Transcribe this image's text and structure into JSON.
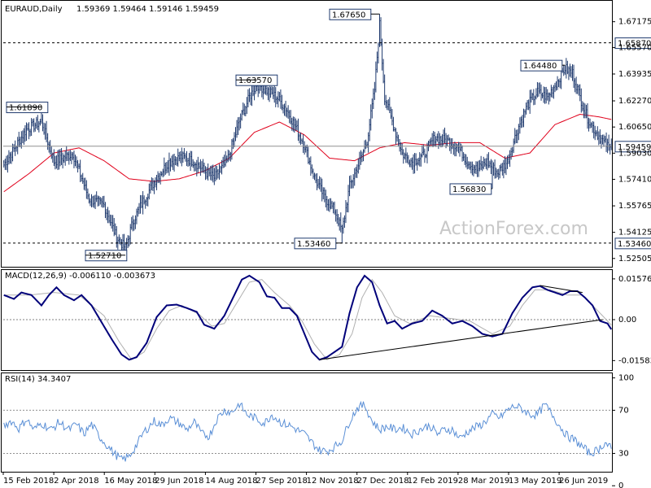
{
  "colors": {
    "background": "#ffffff",
    "candle": "#1f3a6e",
    "ma": "#e0001b",
    "macd_line": "#00007a",
    "macd_signal": "#b0b0b0",
    "rsi": "#5a8fd6",
    "level_box_border": "#1f3a6e",
    "axis": "#000000"
  },
  "watermark": "ActionForex.com",
  "chart_data": [
    {
      "type": "candlestick",
      "title": "EURAUD,Daily",
      "ohlc_header": "1.59369 1.59464 1.59146 1.59459",
      "ylim": [
        1.5199,
        1.6852
      ],
      "y_ticks": [
        "1.67175",
        "1.65570",
        "1.63935",
        "1.62270",
        "1.60650",
        "1.59030",
        "1.57410",
        "1.55765",
        "1.54125",
        "1.52505"
      ],
      "x_ticks": [
        "15 Feb 2018",
        "2 Apr 2018",
        "16 May 2018",
        "29 Jun 2018",
        "14 Aug 2018",
        "27 Sep 2018",
        "12 Nov 2018",
        "27 Dec 2018",
        "12 Feb 2019",
        "28 Mar 2019",
        "13 May 2019",
        "26 Jun 2019"
      ],
      "current_price": "1.59459",
      "dashed_levels": [
        "1.65870",
        "1.53460"
      ],
      "annotations": [
        "1.61890",
        "1.52710",
        "1.63570",
        "1.53460",
        "1.67650",
        "1.56830",
        "1.64480"
      ],
      "anchors": [
        [
          0,
          1.583
        ],
        [
          18,
          1.605
        ],
        [
          30,
          1.61
        ],
        [
          40,
          1.585
        ],
        [
          55,
          1.59
        ],
        [
          68,
          1.562
        ],
        [
          80,
          1.558
        ],
        [
          90,
          1.538
        ],
        [
          97,
          1.5315
        ],
        [
          103,
          1.548
        ],
        [
          112,
          1.562
        ],
        [
          122,
          1.575
        ],
        [
          132,
          1.585
        ],
        [
          142,
          1.588
        ],
        [
          152,
          1.585
        ],
        [
          162,
          1.578
        ],
        [
          168,
          1.575
        ],
        [
          178,
          1.585
        ],
        [
          188,
          1.61
        ],
        [
          196,
          1.625
        ],
        [
          202,
          1.633
        ],
        [
          210,
          1.629
        ],
        [
          218,
          1.625
        ],
        [
          226,
          1.617
        ],
        [
          234,
          1.605
        ],
        [
          240,
          1.595
        ],
        [
          248,
          1.575
        ],
        [
          256,
          1.563
        ],
        [
          264,
          1.555
        ],
        [
          270,
          1.542
        ],
        [
          276,
          1.57
        ],
        [
          284,
          1.585
        ],
        [
          290,
          1.598
        ],
        [
          296,
          1.63
        ],
        [
          300,
          1.67
        ],
        [
          304,
          1.625
        ],
        [
          310,
          1.61
        ],
        [
          318,
          1.59
        ],
        [
          326,
          1.585
        ],
        [
          334,
          1.588
        ],
        [
          344,
          1.6
        ],
        [
          354,
          1.598
        ],
        [
          362,
          1.595
        ],
        [
          370,
          1.585
        ],
        [
          378,
          1.58
        ],
        [
          386,
          1.585
        ],
        [
          394,
          1.578
        ],
        [
          402,
          1.585
        ],
        [
          410,
          1.605
        ],
        [
          418,
          1.62
        ],
        [
          426,
          1.628
        ],
        [
          434,
          1.625
        ],
        [
          442,
          1.635
        ],
        [
          448,
          1.643
        ],
        [
          454,
          1.64
        ],
        [
          460,
          1.625
        ],
        [
          466,
          1.612
        ],
        [
          472,
          1.604
        ],
        [
          478,
          1.598
        ],
        [
          485,
          1.592
        ]
      ],
      "ma_anchors": [
        [
          0,
          1.5664
        ],
        [
          20,
          1.5776
        ],
        [
          40,
          1.5904
        ],
        [
          60,
          1.5936
        ],
        [
          80,
          1.5856
        ],
        [
          100,
          1.5744
        ],
        [
          120,
          1.5728
        ],
        [
          140,
          1.5744
        ],
        [
          160,
          1.5792
        ],
        [
          180,
          1.5872
        ],
        [
          200,
          1.6032
        ],
        [
          220,
          1.6096
        ],
        [
          240,
          1.6016
        ],
        [
          260,
          1.5872
        ],
        [
          280,
          1.5856
        ],
        [
          300,
          1.5936
        ],
        [
          320,
          1.5968
        ],
        [
          340,
          1.5952
        ],
        [
          360,
          1.5968
        ],
        [
          380,
          1.5968
        ],
        [
          400,
          1.5872
        ],
        [
          420,
          1.5904
        ],
        [
          440,
          1.608
        ],
        [
          460,
          1.6144
        ],
        [
          475,
          1.6128
        ],
        [
          485,
          1.6112
        ]
      ]
    },
    {
      "type": "line",
      "title": "MACD(12,26,9) -0.006110 -0.003673",
      "ylim": [
        -0.0195,
        0.0195
      ],
      "y_ticks": [
        "0.015762",
        "0.00",
        "-0.015834"
      ],
      "series": [
        {
          "anchors": [
            [
              0,
              0.0095
            ],
            [
              8,
              0.008
            ],
            [
              14,
              0.0105
            ],
            [
              22,
              0.0095
            ],
            [
              30,
              0.0055
            ],
            [
              36,
              0.0095
            ],
            [
              42,
              0.0125
            ],
            [
              48,
              0.0095
            ],
            [
              56,
              0.0075
            ],
            [
              62,
              0.0095
            ],
            [
              70,
              0.0055
            ],
            [
              78,
              -0.001
            ],
            [
              86,
              -0.0075
            ],
            [
              94,
              -0.0135
            ],
            [
              100,
              -0.0155
            ],
            [
              106,
              -0.0145
            ],
            [
              114,
              -0.009
            ],
            [
              122,
              0.001
            ],
            [
              130,
              0.0055
            ],
            [
              138,
              0.0058
            ],
            [
              146,
              0.0045
            ],
            [
              154,
              0.003
            ],
            [
              160,
              -0.002
            ],
            [
              168,
              -0.0035
            ],
            [
              176,
              0.0015
            ],
            [
              184,
              0.0095
            ],
            [
              190,
              0.0155
            ],
            [
              196,
              0.017
            ],
            [
              204,
              0.0145
            ],
            [
              210,
              0.009
            ],
            [
              216,
              0.0085
            ],
            [
              222,
              0.0045
            ],
            [
              228,
              0.0045
            ],
            [
              234,
              0.0015
            ],
            [
              240,
              -0.0055
            ],
            [
              246,
              -0.0125
            ],
            [
              252,
              -0.0155
            ],
            [
              258,
              -0.0145
            ],
            [
              264,
              -0.0125
            ],
            [
              270,
              -0.0105
            ],
            [
              276,
              0.0025
            ],
            [
              282,
              0.0125
            ],
            [
              288,
              0.017
            ],
            [
              294,
              0.0145
            ],
            [
              300,
              0.0055
            ],
            [
              306,
              -0.0015
            ],
            [
              312,
              -0.0005
            ],
            [
              318,
              -0.0035
            ],
            [
              326,
              -0.0015
            ],
            [
              334,
              -0.0005
            ],
            [
              342,
              0.0035
            ],
            [
              350,
              0.0015
            ],
            [
              358,
              -0.0015
            ],
            [
              366,
              -0.0005
            ],
            [
              374,
              -0.0025
            ],
            [
              382,
              -0.0055
            ],
            [
              390,
              -0.0065
            ],
            [
              398,
              -0.0055
            ],
            [
              406,
              0.0025
            ],
            [
              414,
              0.0085
            ],
            [
              422,
              0.0125
            ],
            [
              428,
              0.013
            ],
            [
              434,
              0.0115
            ],
            [
              440,
              0.0105
            ],
            [
              446,
              0.0095
            ],
            [
              452,
              0.011
            ],
            [
              458,
              0.011
            ],
            [
              464,
              0.0085
            ],
            [
              470,
              0.0055
            ],
            [
              476,
              -0.0005
            ],
            [
              482,
              -0.0015
            ],
            [
              488,
              -0.006
            ]
          ]
        },
        {
          "anchors": [
            [
              0,
              0.0095
            ],
            [
              20,
              0.0095
            ],
            [
              40,
              0.0105
            ],
            [
              60,
              0.0095
            ],
            [
              80,
              0.0015
            ],
            [
              92,
              -0.0085
            ],
            [
              102,
              -0.0155
            ],
            [
              112,
              -0.0125
            ],
            [
              122,
              -0.0035
            ],
            [
              132,
              0.0035
            ],
            [
              142,
              0.0055
            ],
            [
              156,
              0.002
            ],
            [
              166,
              -0.0025
            ],
            [
              176,
              -0.0015
            ],
            [
              186,
              0.0065
            ],
            [
              196,
              0.0145
            ],
            [
              206,
              0.0155
            ],
            [
              216,
              0.0105
            ],
            [
              228,
              0.0055
            ],
            [
              238,
              -0.0005
            ],
            [
              248,
              -0.0095
            ],
            [
              258,
              -0.0155
            ],
            [
              268,
              -0.0135
            ],
            [
              278,
              -0.0055
            ],
            [
              286,
              0.0085
            ],
            [
              294,
              0.0155
            ],
            [
              302,
              0.0105
            ],
            [
              312,
              0.0015
            ],
            [
              324,
              -0.0015
            ],
            [
              340,
              0.0015
            ],
            [
              356,
              0.0005
            ],
            [
              372,
              -0.0005
            ],
            [
              390,
              -0.0055
            ],
            [
              404,
              -0.0025
            ],
            [
              414,
              0.0055
            ],
            [
              424,
              0.0115
            ],
            [
              436,
              0.0115
            ],
            [
              450,
              0.0095
            ],
            [
              462,
              0.0095
            ],
            [
              472,
              0.0045
            ],
            [
              480,
              0.0005
            ],
            [
              488,
              -0.0037
            ]
          ]
        }
      ]
    },
    {
      "type": "line",
      "title": "RSI(14) 34.3407",
      "ylim": [
        13,
        105
      ],
      "y_ticks": [
        "100",
        "70",
        "30",
        "0"
      ],
      "dashed_levels": [
        70,
        30
      ],
      "anchors": [
        [
          0,
          56
        ],
        [
          6,
          60
        ],
        [
          12,
          53
        ],
        [
          18,
          62
        ],
        [
          24,
          52
        ],
        [
          30,
          58
        ],
        [
          38,
          52
        ],
        [
          44,
          59
        ],
        [
          52,
          52
        ],
        [
          58,
          57
        ],
        [
          64,
          48
        ],
        [
          70,
          57
        ],
        [
          76,
          46
        ],
        [
          82,
          38
        ],
        [
          88,
          30
        ],
        [
          94,
          24
        ],
        [
          100,
          27
        ],
        [
          106,
          38
        ],
        [
          112,
          50
        ],
        [
          120,
          60
        ],
        [
          126,
          56
        ],
        [
          132,
          63
        ],
        [
          140,
          58
        ],
        [
          146,
          52
        ],
        [
          152,
          59
        ],
        [
          158,
          48
        ],
        [
          164,
          46
        ],
        [
          170,
          62
        ],
        [
          176,
          70
        ],
        [
          182,
          68
        ],
        [
          188,
          76
        ],
        [
          194,
          66
        ],
        [
          200,
          63
        ],
        [
          208,
          58
        ],
        [
          214,
          66
        ],
        [
          222,
          58
        ],
        [
          228,
          56
        ],
        [
          234,
          52
        ],
        [
          240,
          48
        ],
        [
          246,
          40
        ],
        [
          252,
          33
        ],
        [
          258,
          32
        ],
        [
          264,
          36
        ],
        [
          270,
          42
        ],
        [
          276,
          60
        ],
        [
          282,
          72
        ],
        [
          288,
          75
        ],
        [
          294,
          60
        ],
        [
          300,
          52
        ],
        [
          306,
          55
        ],
        [
          312,
          52
        ],
        [
          318,
          54
        ],
        [
          326,
          48
        ],
        [
          332,
          52
        ],
        [
          340,
          56
        ],
        [
          346,
          48
        ],
        [
          352,
          52
        ],
        [
          358,
          52
        ],
        [
          364,
          44
        ],
        [
          370,
          50
        ],
        [
          376,
          54
        ],
        [
          382,
          57
        ],
        [
          390,
          66
        ],
        [
          396,
          63
        ],
        [
          402,
          70
        ],
        [
          408,
          74
        ],
        [
          414,
          71
        ],
        [
          420,
          66
        ],
        [
          426,
          66
        ],
        [
          432,
          75
        ],
        [
          438,
          66
        ],
        [
          444,
          55
        ],
        [
          450,
          46
        ],
        [
          456,
          42
        ],
        [
          462,
          36
        ],
        [
          468,
          30
        ],
        [
          474,
          33
        ],
        [
          480,
          40
        ],
        [
          485,
          34.34
        ]
      ]
    }
  ]
}
